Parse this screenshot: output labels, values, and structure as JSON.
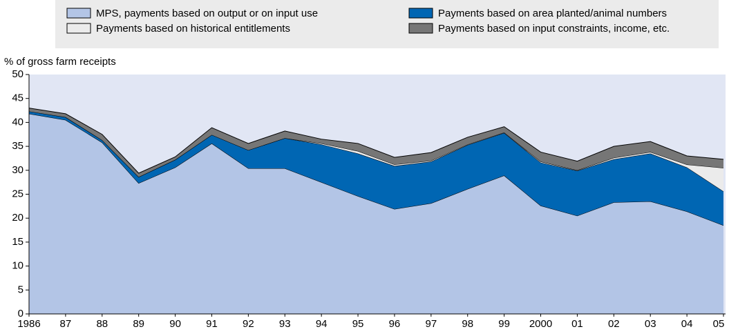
{
  "chart_data": {
    "type": "stacked_area",
    "y_axis_label": "% of gross farm receipts",
    "categories": [
      "1986",
      "87",
      "88",
      "89",
      "90",
      "91",
      "92",
      "93",
      "94",
      "95",
      "96",
      "97",
      "98",
      "99",
      "2000",
      "01",
      "02",
      "03",
      "04",
      "05"
    ],
    "series": [
      {
        "name": "MPS, payments based on output or on input use",
        "color": "#b3c5e6",
        "values": [
          41.8,
          40.5,
          35.8,
          27.3,
          30.6,
          35.6,
          30.4,
          30.4,
          27.5,
          24.6,
          21.9,
          23.1,
          26.1,
          28.9,
          22.6,
          20.5,
          23.3,
          23.5,
          21.4,
          18.5
        ]
      },
      {
        "name": "Payments based on area planted/animal numbers",
        "color": "#0066b3",
        "values": [
          0.5,
          0.6,
          0.5,
          1.3,
          1.6,
          1.8,
          3.8,
          6.3,
          7.9,
          8.9,
          9.0,
          8.7,
          9.2,
          8.9,
          9.0,
          9.4,
          9.0,
          10.0,
          9.2,
          7.1
        ]
      },
      {
        "name": "Payments based on historical entitlements",
        "color": "#ebebeb",
        "values": [
          0,
          0,
          0,
          0,
          0,
          0,
          0,
          0,
          0.2,
          0.5,
          0.3,
          0.2,
          0.1,
          0.1,
          0.2,
          0.1,
          0.3,
          0.3,
          0.6,
          4.9
        ]
      },
      {
        "name": "Payments based on input constraints, income, etc.",
        "color": "#767676",
        "values": [
          0.7,
          0.7,
          1.2,
          0.8,
          0.6,
          1.5,
          1.4,
          1.5,
          0.9,
          1.6,
          1.5,
          1.7,
          1.5,
          1.2,
          2.0,
          1.9,
          2.4,
          2.2,
          1.8,
          1.8
        ]
      }
    ],
    "ylim": [
      0,
      50
    ],
    "yticks": [
      0,
      5,
      10,
      15,
      20,
      25,
      30,
      35,
      40,
      45,
      50
    ],
    "grid": false
  }
}
